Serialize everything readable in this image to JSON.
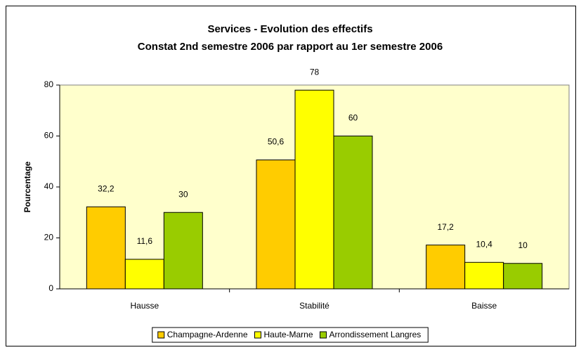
{
  "chart_data": {
    "type": "bar",
    "title": "Services - Evolution des effectifs",
    "subtitle": "Constat 2nd semestre 2006 par rapport au 1er semestre 2006",
    "y_label": "Pourcentage",
    "categories": [
      "Hausse",
      "Stabilité",
      "Baisse"
    ],
    "series": [
      {
        "name": "Champagne-Ardenne",
        "color": "#ffcc00",
        "values": [
          32.2,
          50.6,
          17.2
        ],
        "value_labels": [
          "32,2",
          "50,6",
          "17,2"
        ]
      },
      {
        "name": "Haute-Marne",
        "color": "#ffff00",
        "values": [
          11.6,
          78,
          10.4
        ],
        "value_labels": [
          "11,6",
          "78",
          "10,4"
        ]
      },
      {
        "name": "Arrondissement Langres",
        "color": "#99cc00",
        "values": [
          30,
          60,
          10
        ],
        "value_labels": [
          "30",
          "60",
          "10"
        ]
      }
    ],
    "ylim": [
      0,
      80
    ],
    "yticks": [
      0,
      20,
      40,
      60,
      80
    ],
    "grid": false,
    "legend": "bottom",
    "plot_background": "#ffffcc"
  }
}
